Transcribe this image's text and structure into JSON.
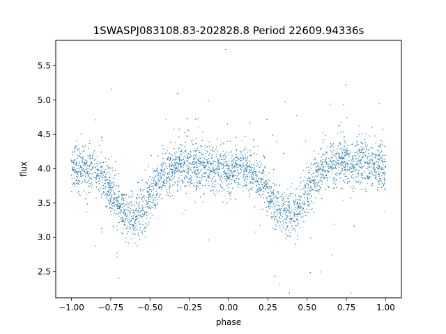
{
  "chart_data": {
    "type": "scatter",
    "title": "1SWASPJ083108.83-202828.8 Period 22609.94336s",
    "xlabel": "phase",
    "ylabel": "flux",
    "xlim": [
      -1.1,
      1.1
    ],
    "ylim": [
      2.12,
      5.87
    ],
    "grid": false,
    "legend": "none",
    "marker_color": "#1f77b4",
    "x_ticks": [
      -1.0,
      -0.75,
      -0.5,
      -0.25,
      0.0,
      0.25,
      0.5,
      0.75,
      1.0
    ],
    "x_tick_labels": [
      "−1.00",
      "−0.75",
      "−0.50",
      "−0.25",
      "0.00",
      "0.25",
      "0.50",
      "0.75",
      "1.00"
    ],
    "y_ticks": [
      2.5,
      3.0,
      3.5,
      4.0,
      4.5,
      5.0,
      5.5
    ],
    "y_tick_labels": [
      "2.5",
      "3.0",
      "3.5",
      "4.0",
      "4.5",
      "5.0",
      "5.5"
    ],
    "series": [
      {
        "profile": {
          "x": [
            -1.0,
            -0.9,
            -0.8,
            -0.7,
            -0.65,
            -0.6,
            -0.55,
            -0.5,
            -0.4,
            -0.3,
            -0.2,
            -0.1,
            0.0,
            0.1,
            0.2,
            0.3,
            0.35,
            0.4,
            0.45,
            0.5,
            0.6,
            0.7,
            0.8,
            0.9,
            1.0
          ],
          "y": [
            4.0,
            4.0,
            3.9,
            3.45,
            3.35,
            3.33,
            3.4,
            3.6,
            3.95,
            4.05,
            4.05,
            4.0,
            3.98,
            4.0,
            3.85,
            3.45,
            3.33,
            3.32,
            3.45,
            3.7,
            4.0,
            4.1,
            4.1,
            4.05,
            4.0
          ]
        }
      }
    ]
  }
}
